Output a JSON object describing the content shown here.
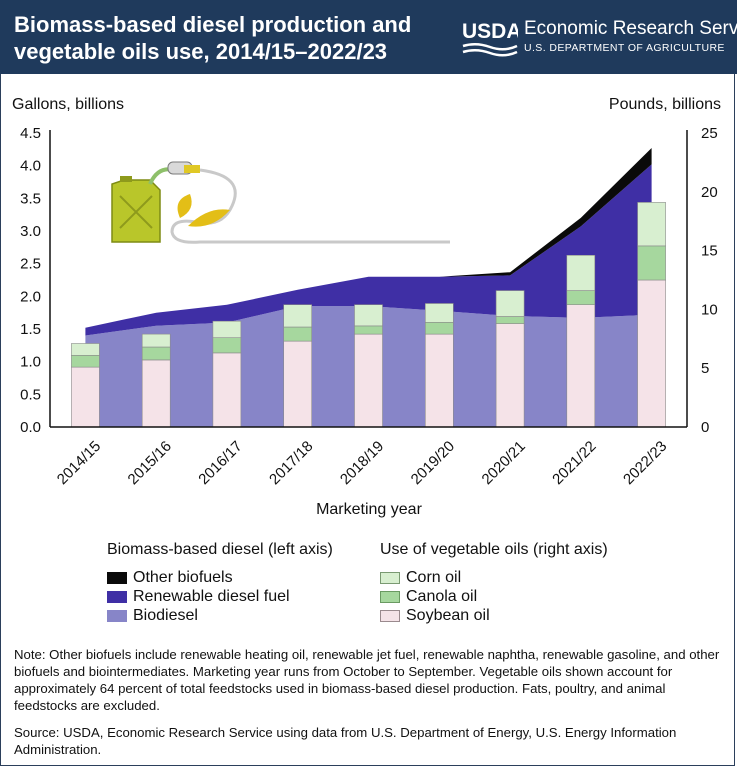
{
  "header": {
    "title": "Biomass-based diesel production and vegetable oils use, 2014/15–2022/23",
    "logo_mark": "USDA",
    "agency": "Economic Research Service",
    "department": "U.S. DEPARTMENT OF AGRICULTURE"
  },
  "chart_data": {
    "type": "area+bar",
    "title": "Biomass-based diesel production and vegetable oils use, 2014/15–2022/23",
    "xlabel": "Marketing year",
    "left_axis_label": "Gallons, billions",
    "right_axis_label": "Pounds, billions",
    "categories": [
      "2014/15",
      "2015/16",
      "2016/17",
      "2017/18",
      "2018/19",
      "2019/20",
      "2020/21",
      "2021/22",
      "2022/23"
    ],
    "left_ylim": [
      0,
      4.5
    ],
    "left_ticks": [
      "0.0",
      "0.5",
      "1.0",
      "1.5",
      "2.0",
      "2.5",
      "3.0",
      "3.5",
      "4.0",
      "4.5"
    ],
    "right_ylim": [
      0,
      25
    ],
    "right_ticks": [
      "0",
      "5",
      "10",
      "15",
      "20",
      "25"
    ],
    "area_series": [
      {
        "name": "Biodiesel",
        "axis": "left",
        "values": [
          1.4,
          1.55,
          1.6,
          1.85,
          1.85,
          1.78,
          1.7,
          1.67,
          1.72
        ]
      },
      {
        "name": "Renewable diesel fuel",
        "axis": "left",
        "values": [
          0.12,
          0.2,
          0.27,
          0.25,
          0.45,
          0.52,
          0.62,
          1.4,
          2.3
        ]
      },
      {
        "name": "Other biofuels",
        "axis": "left",
        "values": [
          0.0,
          0.0,
          0.0,
          0.0,
          0.0,
          0.0,
          0.05,
          0.13,
          0.25
        ]
      }
    ],
    "bar_series": [
      {
        "name": "Soybean oil",
        "axis": "right",
        "values": [
          5.1,
          5.7,
          6.3,
          7.3,
          7.9,
          7.9,
          8.8,
          10.4,
          12.5
        ]
      },
      {
        "name": "Canola oil",
        "axis": "right",
        "values": [
          1.0,
          1.1,
          1.3,
          1.2,
          0.7,
          1.0,
          0.6,
          1.2,
          2.9
        ]
      },
      {
        "name": "Corn oil",
        "axis": "right",
        "values": [
          1.0,
          1.1,
          1.4,
          1.9,
          1.8,
          1.6,
          2.2,
          3.0,
          3.7
        ]
      }
    ],
    "colors": {
      "Biodiesel": "#8785c8",
      "Renewable diesel fuel": "#3f2fa5",
      "Other biofuels": "#0a0a0a",
      "Soybean oil": "#f5e3e8",
      "Canola oil": "#a6d79e",
      "Corn oil": "#d8efd0"
    }
  },
  "legend": {
    "left_heading": "Biomass-based diesel (left axis)",
    "right_heading": "Use of vegetable oils (right axis)",
    "left_items": [
      "Other biofuels",
      "Renewable diesel fuel",
      "Biodiesel"
    ],
    "right_items": [
      "Corn oil",
      "Canola oil",
      "Soybean oil"
    ]
  },
  "note": "Note: Other biofuels include renewable heating oil, renewable jet fuel, renewable naphtha, renewable gasoline, and other biofuels and biointermediates. Marketing year runs from October to September. Vegetable oils shown account for approximately 64 percent of total feedstocks used in biomass-based diesel production. Fats, poultry, and animal feedstocks are excluded.",
  "source": "Source: USDA, Economic Research Service using data from U.S. Department of Energy, U.S. Energy Information Administration."
}
